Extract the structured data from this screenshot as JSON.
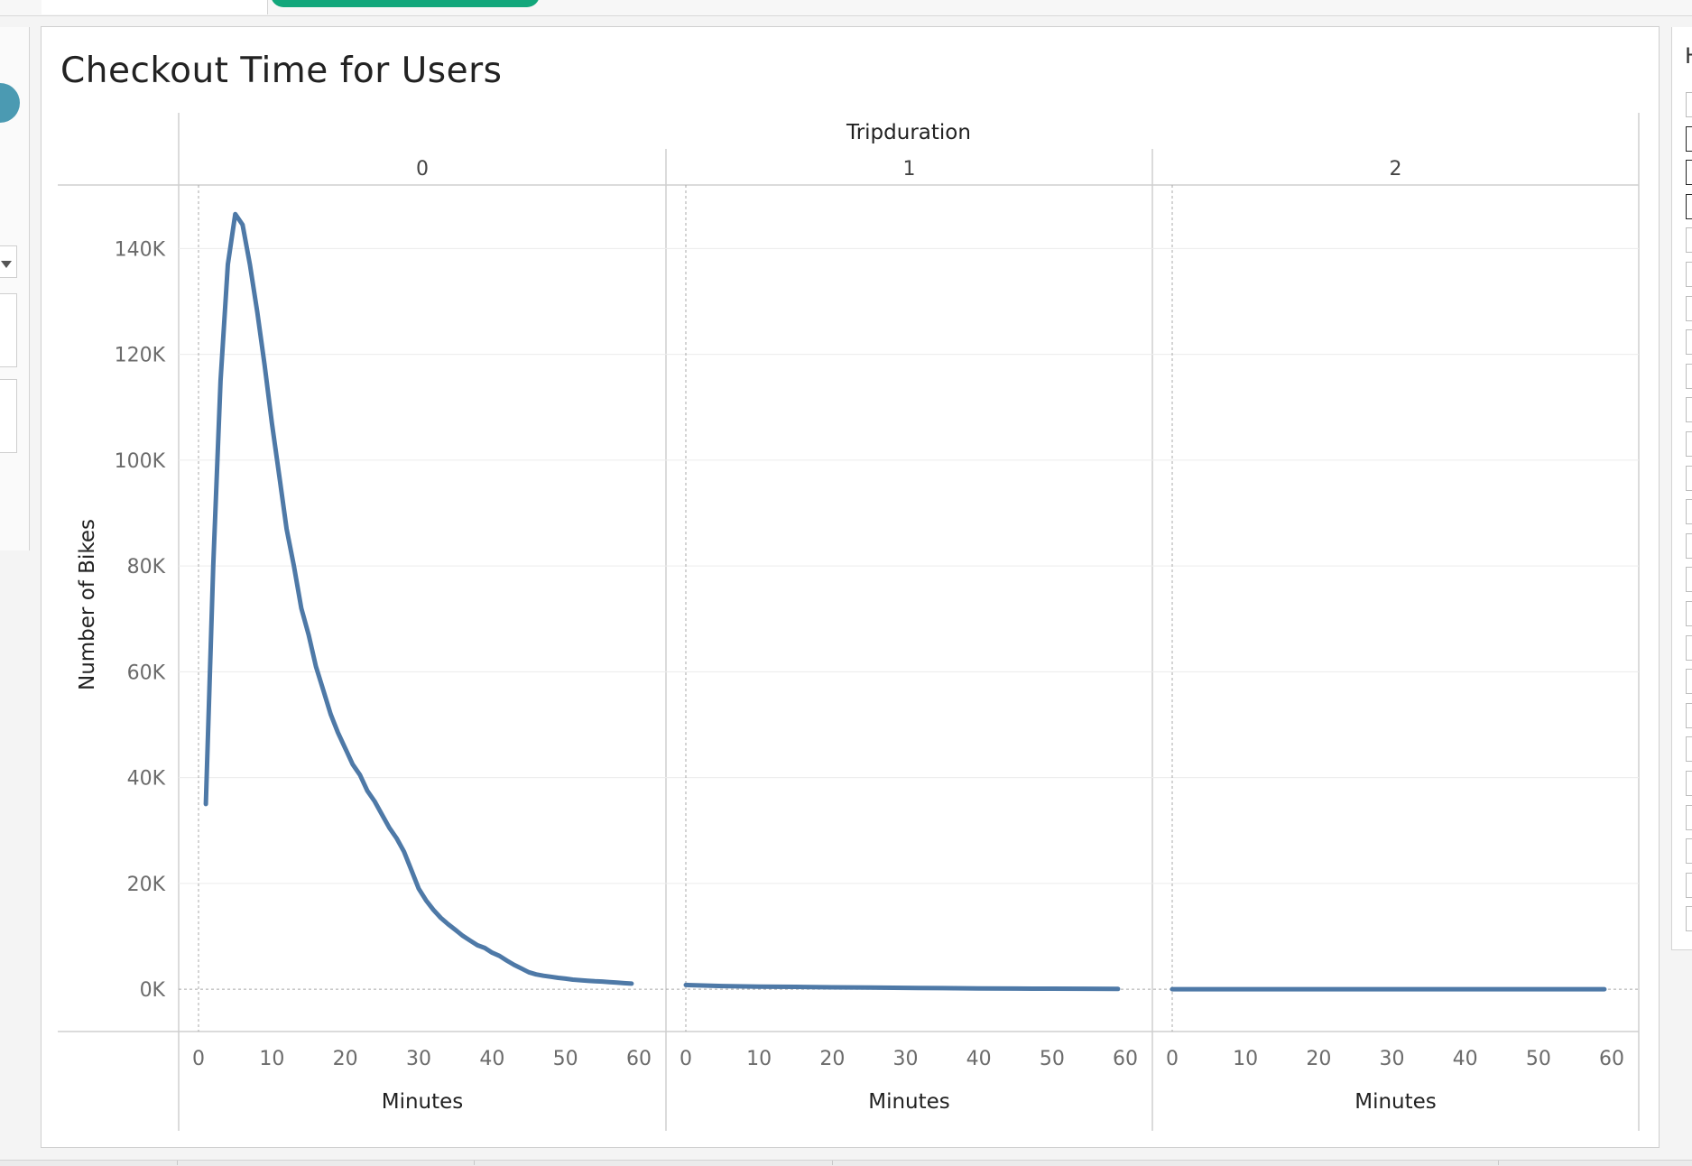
{
  "chart_data": {
    "type": "line",
    "title": "Checkout Time for Users",
    "column_header": "Tripduration",
    "panels": [
      "0",
      "1",
      "2"
    ],
    "xlabel": "Minutes",
    "ylabel": "Number of Bikes",
    "xlim": [
      0,
      60
    ],
    "ylim": [
      -8000,
      152000
    ],
    "x_ticks": [
      "0",
      "10",
      "20",
      "30",
      "40",
      "50",
      "60"
    ],
    "y_ticks": [
      {
        "value": 0,
        "label": "0K"
      },
      {
        "value": 20000,
        "label": "20K"
      },
      {
        "value": 40000,
        "label": "40K"
      },
      {
        "value": 60000,
        "label": "60K"
      },
      {
        "value": 80000,
        "label": "80K"
      },
      {
        "value": 100000,
        "label": "100K"
      },
      {
        "value": 120000,
        "label": "120K"
      },
      {
        "value": 140000,
        "label": "140K"
      }
    ],
    "grid": true,
    "line_color": "#4e79a7",
    "series": [
      {
        "x": [
          1,
          2,
          3,
          4,
          5,
          6,
          7,
          8,
          9,
          10,
          11,
          12,
          13,
          14,
          15,
          16,
          17,
          18,
          19,
          20,
          21,
          22,
          23,
          24,
          25,
          26,
          27,
          28,
          29,
          30,
          31,
          32,
          33,
          34,
          35,
          36,
          37,
          38,
          39,
          40,
          41,
          42,
          43,
          44,
          45,
          46,
          47,
          48,
          49,
          50,
          51,
          52,
          53,
          54,
          55,
          56,
          57,
          58,
          59
        ],
        "y": [
          35000,
          80000,
          115000,
          137000,
          146500,
          144500,
          137000,
          128000,
          118000,
          107000,
          97000,
          87000,
          80000,
          72000,
          67000,
          61000,
          56500,
          52000,
          48500,
          45500,
          42500,
          40500,
          37500,
          35500,
          33000,
          30500,
          28500,
          26000,
          22500,
          19000,
          16800,
          15000,
          13500,
          12300,
          11200,
          10100,
          9200,
          8300,
          7800,
          6900,
          6300,
          5400,
          4600,
          3900,
          3200,
          2800,
          2550,
          2350,
          2150,
          2000,
          1800,
          1700,
          1600,
          1500,
          1450,
          1350,
          1250,
          1150,
          1050
        ]
      },
      {
        "x": [
          0,
          5,
          10,
          15,
          20,
          25,
          30,
          35,
          40,
          45,
          50,
          55,
          59
        ],
        "y": [
          800,
          600,
          500,
          450,
          350,
          300,
          250,
          200,
          150,
          120,
          100,
          80,
          50
        ]
      },
      {
        "x": [
          0,
          10,
          20,
          30,
          40,
          50,
          59
        ],
        "y": [
          0,
          0,
          0,
          0,
          0,
          0,
          0
        ]
      }
    ]
  }
}
